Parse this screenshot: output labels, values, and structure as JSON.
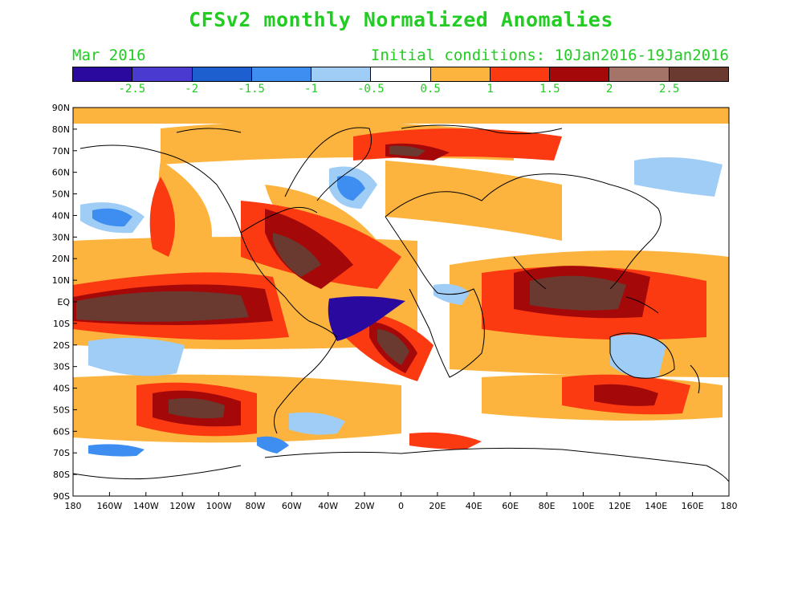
{
  "title": "CFSv2 monthly Normalized Anomalies",
  "subtitle_left": "Mar 2016",
  "subtitle_right": "Initial conditions: 10Jan2016-19Jan2016",
  "colorbar": {
    "colors": [
      "#2a0a9e",
      "#4a3ad0",
      "#1e5fd0",
      "#3d8ef0",
      "#9fcdf5",
      "#ffffff",
      "#fdb43e",
      "#fb3a12",
      "#a50808",
      "#a47469",
      "#6a3a30"
    ],
    "tick_labels": [
      "-2.5",
      "-2",
      "-1.5",
      "-1",
      "-0.5",
      "0.5",
      "1",
      "1.5",
      "2",
      "2.5"
    ]
  },
  "axes": {
    "lat_labels": [
      "90N",
      "80N",
      "70N",
      "60N",
      "50N",
      "40N",
      "30N",
      "20N",
      "10N",
      "EQ",
      "10S",
      "20S",
      "30S",
      "40S",
      "50S",
      "60S",
      "70S",
      "80S",
      "90S"
    ],
    "lon_labels": [
      "180",
      "160W",
      "140W",
      "120W",
      "100W",
      "80W",
      "60W",
      "40W",
      "20W",
      "0",
      "20E",
      "40E",
      "60E",
      "80E",
      "100E",
      "120E",
      "140E",
      "160E",
      "180"
    ]
  }
}
